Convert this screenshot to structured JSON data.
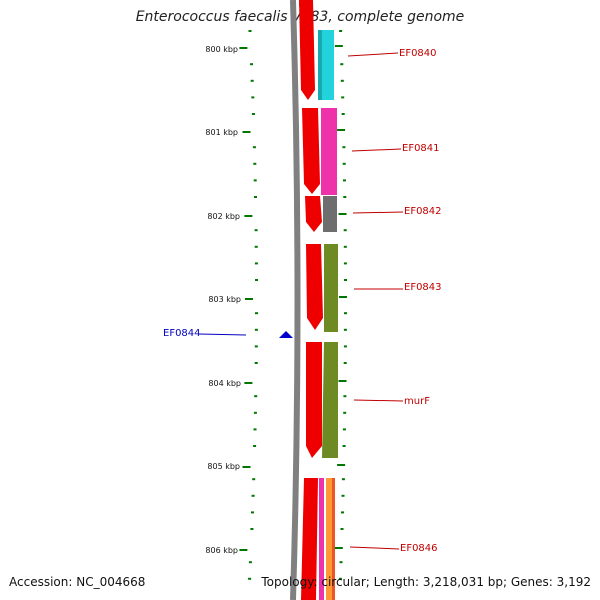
{
  "title": "Enterococcus faecalis V583, complete genome",
  "footer": {
    "accession": "Accession: NC_004668",
    "summary": "Topology: circular; Length: 3,218,031 bp; Genes: 3,192"
  },
  "axis_labels": [
    "800 kbp",
    "801 kbp",
    "802 kbp",
    "803 kbp",
    "804 kbp",
    "805 kbp",
    "806 kbp"
  ],
  "gene_labels": [
    {
      "name": "EF0840",
      "color": "#c00000"
    },
    {
      "name": "EF0841",
      "color": "#c00000"
    },
    {
      "name": "EF0842",
      "color": "#c00000"
    },
    {
      "name": "EF0843",
      "color": "#c00000"
    },
    {
      "name": "murF",
      "color": "#c00000"
    },
    {
      "name": "EF0846",
      "color": "#c00000"
    }
  ],
  "marker_label": {
    "name": "EF0844",
    "color": "#0000c0"
  },
  "colors": {
    "backbone": "#808080",
    "strand": "#ee0000",
    "cyan": "#22d3dc",
    "magenta": "#ee33aa",
    "gray": "#6e6e6e",
    "olive": "#6e8a22",
    "orange": "#ff9933",
    "tick": "#007700"
  }
}
